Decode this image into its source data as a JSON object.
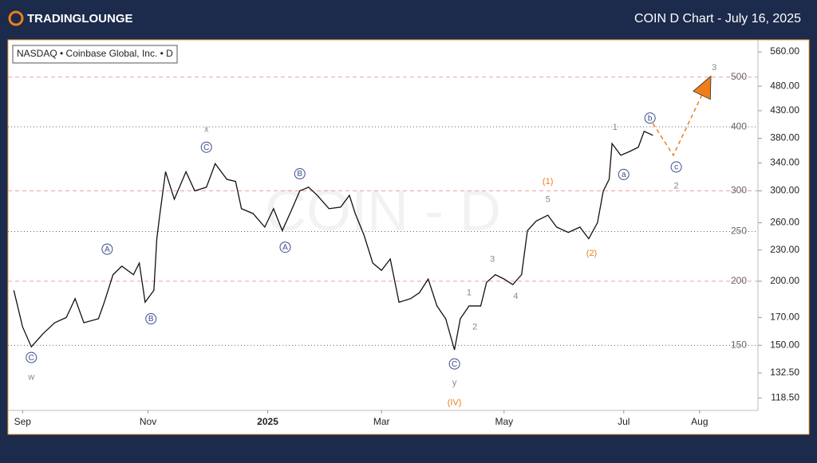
{
  "header": {
    "logo": "TRADINGLOUNGE",
    "title": "COIN D Chart - July 16, 2025"
  },
  "chart_data": {
    "type": "line",
    "legend": "NASDAQ • Coinbase Global, Inc. • D",
    "watermark": "COIN - D",
    "log_scale": true,
    "color": "#111111",
    "xlim": [
      -1,
      256
    ],
    "ylim": [
      112,
      591
    ],
    "xticks": [
      {
        "value": 4,
        "label": "Sep"
      },
      {
        "value": 47,
        "label": "Nov"
      },
      {
        "value": 88,
        "label": "2025"
      },
      {
        "value": 127,
        "label": "Mar"
      },
      {
        "value": 169,
        "label": "May"
      },
      {
        "value": 210,
        "label": "Jul"
      },
      {
        "value": 236,
        "label": "Aug"
      }
    ],
    "yticks": [
      {
        "value": 560,
        "label": "560.00"
      },
      {
        "value": 480,
        "label": "480.00"
      },
      {
        "value": 430,
        "label": "430.00"
      },
      {
        "value": 380,
        "label": "380.00"
      },
      {
        "value": 340,
        "label": "340.00"
      },
      {
        "value": 300,
        "label": "300.00"
      },
      {
        "value": 260,
        "label": "260.00"
      },
      {
        "value": 230,
        "label": "230.00"
      },
      {
        "value": 200,
        "label": "200.00"
      },
      {
        "value": 170,
        "label": "170.00"
      },
      {
        "value": 150,
        "label": "150.00"
      },
      {
        "value": 132.5,
        "label": "132.50"
      },
      {
        "value": 118.5,
        "label": "118.50"
      }
    ],
    "hlines": [
      {
        "value": 500,
        "style": "dashed"
      },
      {
        "value": 400,
        "style": "dotted"
      },
      {
        "value": 300,
        "style": "dashed"
      },
      {
        "value": 250,
        "style": "dotted"
      },
      {
        "value": 200,
        "style": "dashed"
      },
      {
        "value": 150,
        "style": "dotted"
      }
    ],
    "x": [
      1,
      4,
      7,
      11,
      15,
      19,
      22,
      25,
      30,
      32,
      35,
      38,
      42,
      44,
      46,
      49,
      50,
      51,
      53,
      56,
      60,
      63,
      67,
      70,
      74,
      77,
      79,
      83,
      87,
      90,
      93,
      96,
      99,
      102,
      105,
      109,
      113,
      116,
      118,
      121,
      124,
      127,
      130,
      133,
      137,
      140,
      143,
      146,
      149,
      152,
      154,
      157,
      161,
      163,
      166,
      169,
      172,
      175,
      177,
      180,
      184,
      187,
      191,
      195,
      198,
      201,
      203,
      205,
      206,
      209,
      212,
      215,
      217,
      220
    ],
    "values": [
      192,
      163,
      149,
      158,
      166,
      170,
      185,
      166,
      169,
      182,
      206,
      214,
      206,
      217,
      182,
      192,
      242,
      269,
      327,
      289,
      327,
      300,
      305,
      339,
      316,
      313,
      277,
      271,
      255,
      277,
      251,
      274,
      300,
      305,
      294,
      277,
      279,
      294,
      271,
      246,
      217,
      210,
      221,
      182,
      185,
      190,
      202,
      179,
      169,
      147,
      169,
      179,
      179,
      199,
      206,
      202,
      197,
      206,
      251,
      262,
      269,
      255,
      249,
      255,
      242,
      260,
      300,
      316,
      371,
      352,
      358,
      365,
      392,
      385
    ],
    "projection": {
      "color": "#f07d1a",
      "x": [
        220,
        227,
        238
      ],
      "values": [
        406,
        352,
        477
      ]
    },
    "annotations": [
      {
        "text": "w",
        "x": 7,
        "y": 130,
        "color": "#888888",
        "circled": false
      },
      {
        "text": "C",
        "x": 7,
        "y": 142,
        "color": "#3b4c8c",
        "circled": true
      },
      {
        "text": "A",
        "x": 33,
        "y": 231,
        "color": "#3b4c8c",
        "circled": true
      },
      {
        "text": "B",
        "x": 48,
        "y": 169,
        "color": "#3b4c8c",
        "circled": true
      },
      {
        "text": "C",
        "x": 67,
        "y": 365,
        "color": "#3b4c8c",
        "circled": true
      },
      {
        "text": "x",
        "x": 67,
        "y": 396,
        "color": "#888888",
        "circled": false
      },
      {
        "text": "A",
        "x": 94,
        "y": 233,
        "color": "#3b4c8c",
        "circled": true
      },
      {
        "text": "B",
        "x": 99,
        "y": 324,
        "color": "#3b4c8c",
        "circled": true
      },
      {
        "text": "C",
        "x": 152,
        "y": 138,
        "color": "#3b4c8c",
        "circled": true
      },
      {
        "text": "y",
        "x": 152,
        "y": 127,
        "color": "#888888",
        "circled": false
      },
      {
        "text": "(IV)",
        "x": 152,
        "y": 116,
        "color": "#f07d1a",
        "circled": false
      },
      {
        "text": "1",
        "x": 157,
        "y": 190,
        "color": "#888888",
        "circled": false
      },
      {
        "text": "2",
        "x": 159,
        "y": 163,
        "color": "#888888",
        "circled": false
      },
      {
        "text": "3",
        "x": 165,
        "y": 221,
        "color": "#888888",
        "circled": false
      },
      {
        "text": "4",
        "x": 173,
        "y": 187,
        "color": "#888888",
        "circled": false
      },
      {
        "text": "5",
        "x": 184,
        "y": 289,
        "color": "#888888",
        "circled": false
      },
      {
        "text": "(1)",
        "x": 184,
        "y": 313,
        "color": "#f07d1a",
        "circled": false
      },
      {
        "text": "(2)",
        "x": 199,
        "y": 227,
        "color": "#f07d1a",
        "circled": false
      },
      {
        "text": "a",
        "x": 210,
        "y": 323,
        "color": "#3b4c8c",
        "circled": true
      },
      {
        "text": "1",
        "x": 207,
        "y": 399,
        "color": "#888888",
        "circled": false
      },
      {
        "text": "b",
        "x": 219,
        "y": 416,
        "color": "#3b4c8c",
        "circled": true
      },
      {
        "text": "c",
        "x": 228,
        "y": 334,
        "color": "#3b4c8c",
        "circled": true
      },
      {
        "text": "2",
        "x": 228,
        "y": 307,
        "color": "#888888",
        "circled": false
      },
      {
        "text": "3",
        "x": 241,
        "y": 522,
        "color": "#888888",
        "circled": false
      }
    ]
  }
}
